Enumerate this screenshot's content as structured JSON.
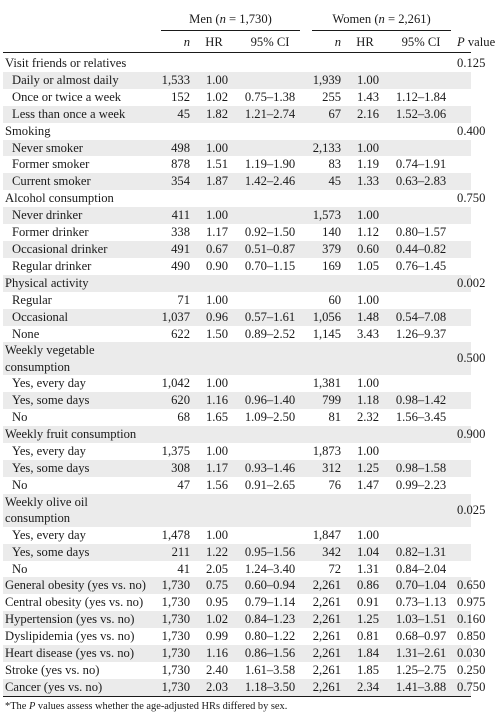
{
  "header": {
    "men_prefix": "Men (",
    "men_n_italic": "n",
    "men_suffix": " = 1,730)",
    "women_prefix": "Women (",
    "women_n_italic": "n",
    "women_suffix": " = 2,261)",
    "col_n": "n",
    "col_hr": "HR",
    "col_ci": "95% CI",
    "col_p_italic": "P",
    "col_p_rest": " value"
  },
  "rows": [
    {
      "label": "Visit friends or relatives",
      "level": 0,
      "shade": false,
      "p": "0.125"
    },
    {
      "label": "Daily or almost daily",
      "level": 1,
      "shade": true,
      "m_n": "1,533",
      "m_hr": "1.00",
      "m_ci": "",
      "w_n": "1,939",
      "w_hr": "1.00",
      "w_ci": ""
    },
    {
      "label": "Once or twice a week",
      "level": 1,
      "shade": false,
      "m_n": "152",
      "m_hr": "1.02",
      "m_ci": "0.75–1.38",
      "w_n": "255",
      "w_hr": "1.43",
      "w_ci": "1.12–1.84"
    },
    {
      "label": "Less than once a week",
      "level": 1,
      "shade": true,
      "m_n": "45",
      "m_hr": "1.82",
      "m_ci": "1.21–2.74",
      "w_n": "67",
      "w_hr": "2.16",
      "w_ci": "1.52–3.06"
    },
    {
      "label": "Smoking",
      "level": 0,
      "shade": false,
      "p": "0.400"
    },
    {
      "label": "Never smoker",
      "level": 1,
      "shade": true,
      "m_n": "498",
      "m_hr": "1.00",
      "m_ci": "",
      "w_n": "2,133",
      "w_hr": "1.00",
      "w_ci": ""
    },
    {
      "label": "Former smoker",
      "level": 1,
      "shade": false,
      "m_n": "878",
      "m_hr": "1.51",
      "m_ci": "1.19–1.90",
      "w_n": "83",
      "w_hr": "1.19",
      "w_ci": "0.74–1.91"
    },
    {
      "label": "Current smoker",
      "level": 1,
      "shade": true,
      "m_n": "354",
      "m_hr": "1.87",
      "m_ci": "1.42–2.46",
      "w_n": "45",
      "w_hr": "1.33",
      "w_ci": "0.63–2.83"
    },
    {
      "label": "Alcohol consumption",
      "level": 0,
      "shade": false,
      "p": "0.750"
    },
    {
      "label": "Never drinker",
      "level": 1,
      "shade": true,
      "m_n": "411",
      "m_hr": "1.00",
      "m_ci": "",
      "w_n": "1,573",
      "w_hr": "1.00",
      "w_ci": ""
    },
    {
      "label": "Former drinker",
      "level": 1,
      "shade": false,
      "m_n": "338",
      "m_hr": "1.17",
      "m_ci": "0.92–1.50",
      "w_n": "140",
      "w_hr": "1.12",
      "w_ci": "0.80–1.57"
    },
    {
      "label": "Occasional drinker",
      "level": 1,
      "shade": true,
      "m_n": "491",
      "m_hr": "0.67",
      "m_ci": "0.51–0.87",
      "w_n": "379",
      "w_hr": "0.60",
      "w_ci": "0.44–0.82"
    },
    {
      "label": "Regular drinker",
      "level": 1,
      "shade": false,
      "m_n": "490",
      "m_hr": "0.90",
      "m_ci": "0.70–1.15",
      "w_n": "169",
      "w_hr": "1.05",
      "w_ci": "0.76–1.45"
    },
    {
      "label": "Physical activity",
      "level": 0,
      "shade": true,
      "p": "0.002"
    },
    {
      "label": "Regular",
      "level": 1,
      "shade": false,
      "m_n": "71",
      "m_hr": "1.00",
      "m_ci": "",
      "w_n": "60",
      "w_hr": "1.00",
      "w_ci": ""
    },
    {
      "label": "Occasional",
      "level": 1,
      "shade": true,
      "m_n": "1,037",
      "m_hr": "0.96",
      "m_ci": "0.57–1.61",
      "w_n": "1,056",
      "w_hr": "1.48",
      "w_ci": "0.54–7.08"
    },
    {
      "label": "None",
      "level": 1,
      "shade": false,
      "m_n": "622",
      "m_hr": "1.50",
      "m_ci": "0.89–2.52",
      "w_n": "1,145",
      "w_hr": "3.43",
      "w_ci": "1.26–9.37"
    },
    {
      "label": "Weekly vegetable consumption",
      "level": 0,
      "shade": true,
      "wrap": true,
      "p": "0.500"
    },
    {
      "label": "Yes, every day",
      "level": 1,
      "shade": false,
      "m_n": "1,042",
      "m_hr": "1.00",
      "m_ci": "",
      "w_n": "1,381",
      "w_hr": "1.00",
      "w_ci": ""
    },
    {
      "label": "Yes, some days",
      "level": 1,
      "shade": true,
      "m_n": "620",
      "m_hr": "1.16",
      "m_ci": "0.96–1.40",
      "w_n": "799",
      "w_hr": "1.18",
      "w_ci": "0.98–1.42"
    },
    {
      "label": "No",
      "level": 1,
      "shade": false,
      "m_n": "68",
      "m_hr": "1.65",
      "m_ci": "1.09–2.50",
      "w_n": "81",
      "w_hr": "2.32",
      "w_ci": "1.56–3.45"
    },
    {
      "label": "Weekly fruit consumption",
      "level": 0,
      "shade": true,
      "p": "0.900"
    },
    {
      "label": "Yes, every day",
      "level": 1,
      "shade": false,
      "m_n": "1,375",
      "m_hr": "1.00",
      "m_ci": "",
      "w_n": "1,873",
      "w_hr": "1.00",
      "w_ci": ""
    },
    {
      "label": "Yes, some days",
      "level": 1,
      "shade": true,
      "m_n": "308",
      "m_hr": "1.17",
      "m_ci": "0.93–1.46",
      "w_n": "312",
      "w_hr": "1.25",
      "w_ci": "0.98–1.58"
    },
    {
      "label": "No",
      "level": 1,
      "shade": false,
      "m_n": "47",
      "m_hr": "1.56",
      "m_ci": "0.91–2.65",
      "w_n": "76",
      "w_hr": "1.47",
      "w_ci": "0.99–2.23"
    },
    {
      "label": "Weekly olive oil consumption",
      "level": 0,
      "shade": true,
      "wrap": true,
      "p": "0.025"
    },
    {
      "label": "Yes, every day",
      "level": 1,
      "shade": false,
      "m_n": "1,478",
      "m_hr": "1.00",
      "m_ci": "",
      "w_n": "1,847",
      "w_hr": "1.00",
      "w_ci": ""
    },
    {
      "label": "Yes, some days",
      "level": 1,
      "shade": true,
      "m_n": "211",
      "m_hr": "1.22",
      "m_ci": "0.95–1.56",
      "w_n": "342",
      "w_hr": "1.04",
      "w_ci": "0.82–1.31"
    },
    {
      "label": "No",
      "level": 1,
      "shade": false,
      "m_n": "41",
      "m_hr": "2.05",
      "m_ci": "1.24–3.40",
      "w_n": "72",
      "w_hr": "1.31",
      "w_ci": "0.84–2.04"
    },
    {
      "label": "General obesity (yes vs. no)",
      "level": 0,
      "shade": true,
      "m_n": "1,730",
      "m_hr": "0.75",
      "m_ci": "0.60–0.94",
      "w_n": "2,261",
      "w_hr": "0.86",
      "w_ci": "0.70–1.04",
      "p": "0.650"
    },
    {
      "label": "Central obesity (yes vs. no)",
      "level": 0,
      "shade": false,
      "m_n": "1,730",
      "m_hr": "0.95",
      "m_ci": "0.79–1.14",
      "w_n": "2,261",
      "w_hr": "0.91",
      "w_ci": "0.73–1.13",
      "p": "0.975"
    },
    {
      "label": "Hypertension (yes vs. no)",
      "level": 0,
      "shade": true,
      "m_n": "1,730",
      "m_hr": "1.02",
      "m_ci": "0.84–1.23",
      "w_n": "2,261",
      "w_hr": "1.25",
      "w_ci": "1.03–1.51",
      "p": "0.160"
    },
    {
      "label": "Dyslipidemia (yes vs. no)",
      "level": 0,
      "shade": false,
      "m_n": "1,730",
      "m_hr": "0.99",
      "m_ci": "0.80–1.22",
      "w_n": "2,261",
      "w_hr": "0.81",
      "w_ci": "0.68–0.97",
      "p": "0.850"
    },
    {
      "label": "Heart disease (yes vs. no)",
      "level": 0,
      "shade": true,
      "m_n": "1,730",
      "m_hr": "1.16",
      "m_ci": "0.86–1.56",
      "w_n": "2,261",
      "w_hr": "1.84",
      "w_ci": "1.31–2.61",
      "p": "0.030"
    },
    {
      "label": "Stroke (yes vs. no)",
      "level": 0,
      "shade": false,
      "m_n": "1,730",
      "m_hr": "2.40",
      "m_ci": "1.61–3.58",
      "w_n": "2,261",
      "w_hr": "1.85",
      "w_ci": "1.25–2.75",
      "p": "0.250"
    },
    {
      "label": "Cancer (yes vs. no)",
      "level": 0,
      "shade": true,
      "m_n": "1,730",
      "m_hr": "2.03",
      "m_ci": "1.18–3.50",
      "w_n": "2,261",
      "w_hr": "2.34",
      "w_ci": "1.41–3.88",
      "p": "0.750"
    }
  ],
  "footnote": {
    "prefix": "*The ",
    "p_italic": "P",
    "suffix": " values assess whether the age-adjusted HRs differed by sex."
  },
  "colors": {
    "row_shade": "#ebebeb",
    "text": "#1a1a1a"
  }
}
